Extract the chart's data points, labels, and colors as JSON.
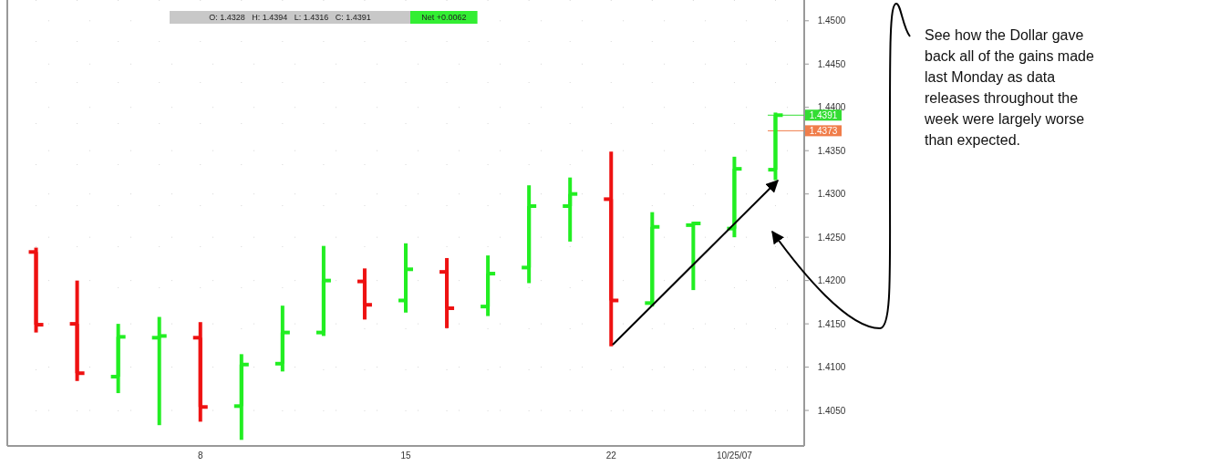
{
  "chart_data": {
    "type": "candlestick",
    "categories": [
      null,
      null,
      null,
      null,
      "8",
      null,
      null,
      null,
      null,
      "15",
      null,
      null,
      null,
      null,
      "22",
      null,
      null,
      "10/25/07",
      null
    ],
    "ohlc": [
      [
        1.4233,
        1.4238,
        1.414,
        1.4149
      ],
      [
        1.415,
        1.42,
        1.4084,
        1.4093
      ],
      [
        1.4089,
        1.415,
        1.407,
        1.4135
      ],
      [
        1.4134,
        1.4158,
        1.4033,
        1.4136
      ],
      [
        1.4134,
        1.4152,
        1.4037,
        1.4054
      ],
      [
        1.4055,
        1.4115,
        1.4016,
        1.4103
      ],
      [
        1.4104,
        1.4171,
        1.4095,
        1.414
      ],
      [
        1.414,
        1.424,
        1.4136,
        1.42
      ],
      [
        1.4199,
        1.4214,
        1.4155,
        1.4172
      ],
      [
        1.4177,
        1.4243,
        1.4163,
        1.4213
      ],
      [
        1.421,
        1.4226,
        1.4145,
        1.4168
      ],
      [
        1.417,
        1.4229,
        1.4159,
        1.4208
      ],
      [
        1.4215,
        1.431,
        1.4197,
        1.4286
      ],
      [
        1.4286,
        1.4319,
        1.4245,
        1.43
      ],
      [
        1.4294,
        1.4349,
        1.4124,
        1.4177
      ],
      [
        1.4174,
        1.4279,
        1.417,
        1.4262
      ],
      [
        1.4264,
        1.4268,
        1.4189,
        1.4266
      ],
      [
        1.426,
        1.4343,
        1.425,
        1.4329
      ],
      [
        1.4328,
        1.4394,
        1.4316,
        1.4391
      ]
    ],
    "colors": [
      "#ee1111",
      "#ee1111",
      "#22ee22",
      "#22ee22",
      "#ee1111",
      "#22ee22",
      "#22ee22",
      "#22ee22",
      "#ee1111",
      "#22ee22",
      "#ee1111",
      "#22ee22",
      "#22ee22",
      "#22ee22",
      "#ee1111",
      "#22ee22",
      "#22ee22",
      "#22ee22",
      "#22ee22"
    ],
    "ylim": [
      1.4009,
      1.4524
    ],
    "yticks": [
      {
        "value": 1.405,
        "label": "1.4050"
      },
      {
        "value": 1.41,
        "label": "1.4100"
      },
      {
        "value": 1.415,
        "label": "1.4150"
      },
      {
        "value": 1.42,
        "label": "1.4200"
      },
      {
        "value": 1.425,
        "label": "1.4250"
      },
      {
        "value": 1.43,
        "label": "1.4300"
      },
      {
        "value": 1.435,
        "label": "1.4350"
      },
      {
        "value": 1.44,
        "label": "1.4400"
      },
      {
        "value": 1.445,
        "label": "1.4450"
      },
      {
        "value": 1.45,
        "label": "1.4500"
      }
    ],
    "grid": true,
    "ref_lines": [
      {
        "axis": "y",
        "value": 1.4391,
        "label": "1.4391",
        "color": "#33dd33"
      },
      {
        "axis": "y",
        "value": 1.4373,
        "label": "1.4373",
        "color": "#f07d4a"
      }
    ],
    "annotations": [
      "O: 1.4328   H: 1.4394   L: 1.4316   C: 1.4391",
      "Net +0.0062",
      "See how the Dollar gave back all of the gains made last Monday as data releases throughout the week were largely worse than expected."
    ]
  }
}
